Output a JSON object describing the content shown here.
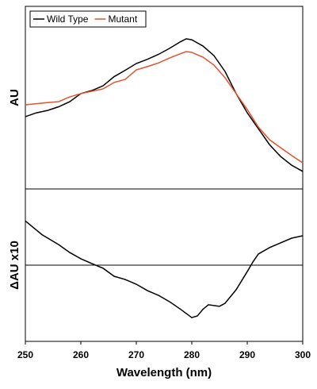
{
  "chart_data": [
    {
      "type": "line",
      "ylabel": "AU",
      "legend": "upper left",
      "xlim": [
        250,
        300
      ],
      "ylim": [
        0,
        100
      ],
      "x": [
        250,
        252,
        254,
        256,
        258,
        260,
        262,
        264,
        266,
        268,
        270,
        272,
        274,
        276,
        278,
        279,
        280,
        282,
        284,
        286,
        288,
        290,
        292,
        294,
        296,
        298,
        300
      ],
      "series": [
        {
          "name": "Wild Type",
          "color": "#000000",
          "values": [
            39.6,
            41.7,
            43,
            45,
            47.8,
            52.2,
            53.9,
            56.5,
            61.5,
            65,
            68.7,
            71,
            73.7,
            77,
            80.7,
            82.2,
            81.7,
            78.3,
            73,
            64.3,
            52.2,
            41.7,
            33,
            24.3,
            17.8,
            13,
            9.6
          ]
        },
        {
          "name": "Mutant",
          "color": "#e8502a",
          "values": [
            46.1,
            46.7,
            47.3,
            47.8,
            50.4,
            52.2,
            53.5,
            54.8,
            58.3,
            60,
            65.2,
            67,
            69,
            71.7,
            74.1,
            75.2,
            74.8,
            72.2,
            67.8,
            60.9,
            52.2,
            43.5,
            33.9,
            27,
            22.6,
            18.3,
            14.3
          ]
        }
      ]
    },
    {
      "type": "line",
      "ylabel": "ΔAU x10",
      "xlabel": "Wavelength (nm)",
      "xlim": [
        250,
        300
      ],
      "xticks": [
        250,
        260,
        270,
        280,
        290,
        300
      ],
      "ylim": [
        -50,
        50
      ],
      "reference_line": 0,
      "x": [
        250,
        253,
        256,
        258,
        260,
        262,
        264,
        266,
        268,
        270,
        272,
        274,
        276,
        278,
        280,
        281,
        282,
        283,
        285,
        286,
        288,
        290,
        291,
        292,
        294,
        296,
        298,
        300
      ],
      "series": [
        {
          "color": "#000000",
          "values": [
            29,
            20,
            13.5,
            8.3,
            4.2,
            1,
            -2,
            -7.3,
            -9.4,
            -12.5,
            -16.7,
            -19.8,
            -24,
            -29,
            -34.4,
            -33.3,
            -29,
            -26,
            -27,
            -25,
            -16.1,
            -4.2,
            2,
            7.3,
            11.5,
            14.6,
            17.7,
            19.3
          ]
        }
      ]
    }
  ]
}
